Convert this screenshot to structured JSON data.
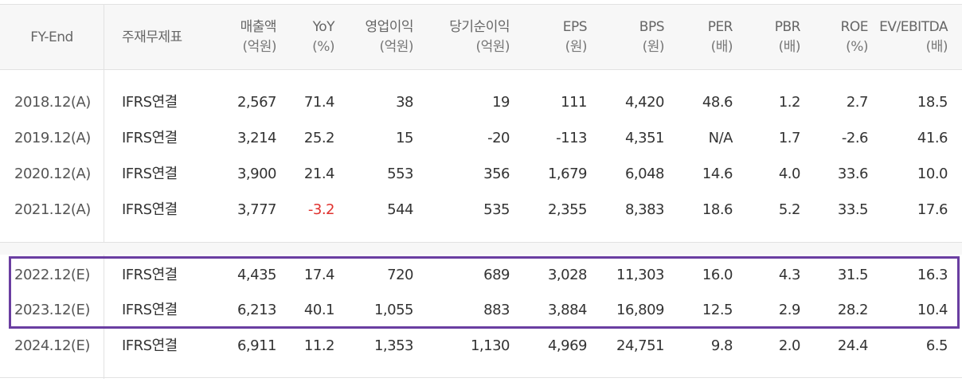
{
  "table": {
    "headers": [
      {
        "label": "FY-End",
        "unit": ""
      },
      {
        "label": "주재무제표",
        "unit": ""
      },
      {
        "label": "매출액",
        "unit": "(억원)"
      },
      {
        "label": "YoY",
        "unit": "(%)"
      },
      {
        "label": "영업이익",
        "unit": "(억원)"
      },
      {
        "label": "당기순이익",
        "unit": "(억원)"
      },
      {
        "label": "EPS",
        "unit": "(원)"
      },
      {
        "label": "BPS",
        "unit": "(원)"
      },
      {
        "label": "PER",
        "unit": "(배)"
      },
      {
        "label": "PBR",
        "unit": "(배)"
      },
      {
        "label": "ROE",
        "unit": "(%)"
      },
      {
        "label": "EV/EBITDA",
        "unit": "(배)"
      }
    ],
    "rows": [
      [
        "2018.12(A)",
        "IFRS연결",
        "2,567",
        "71.4",
        "38",
        "19",
        "111",
        "4,420",
        "48.6",
        "1.2",
        "2.7",
        "18.5"
      ],
      [
        "2019.12(A)",
        "IFRS연결",
        "3,214",
        "25.2",
        "15",
        "-20",
        "-113",
        "4,351",
        "N/A",
        "1.7",
        "-2.6",
        "41.6"
      ],
      [
        "2020.12(A)",
        "IFRS연결",
        "3,900",
        "21.4",
        "553",
        "356",
        "1,679",
        "6,048",
        "14.6",
        "4.0",
        "33.6",
        "10.0"
      ],
      [
        "2021.12(A)",
        "IFRS연결",
        "3,777",
        "-3.2",
        "544",
        "535",
        "2,355",
        "8,383",
        "18.6",
        "5.2",
        "33.5",
        "17.6"
      ],
      [
        "2022.12(E)",
        "IFRS연결",
        "4,435",
        "17.4",
        "720",
        "689",
        "3,028",
        "11,303",
        "16.0",
        "4.3",
        "31.5",
        "16.3"
      ],
      [
        "2023.12(E)",
        "IFRS연결",
        "6,213",
        "40.1",
        "1,055",
        "883",
        "3,884",
        "16,809",
        "12.5",
        "2.9",
        "28.2",
        "10.4"
      ],
      [
        "2024.12(E)",
        "IFRS연결",
        "6,911",
        "11.2",
        "1,353",
        "1,130",
        "4,969",
        "24,751",
        "9.8",
        "2.0",
        "24.4",
        "6.5"
      ]
    ]
  },
  "colors": {
    "highlight_border": "#6a3ea1",
    "negative_yoy": "#e0312e",
    "header_bg": "#f7f7f7",
    "grid": "#e2e2e2"
  }
}
